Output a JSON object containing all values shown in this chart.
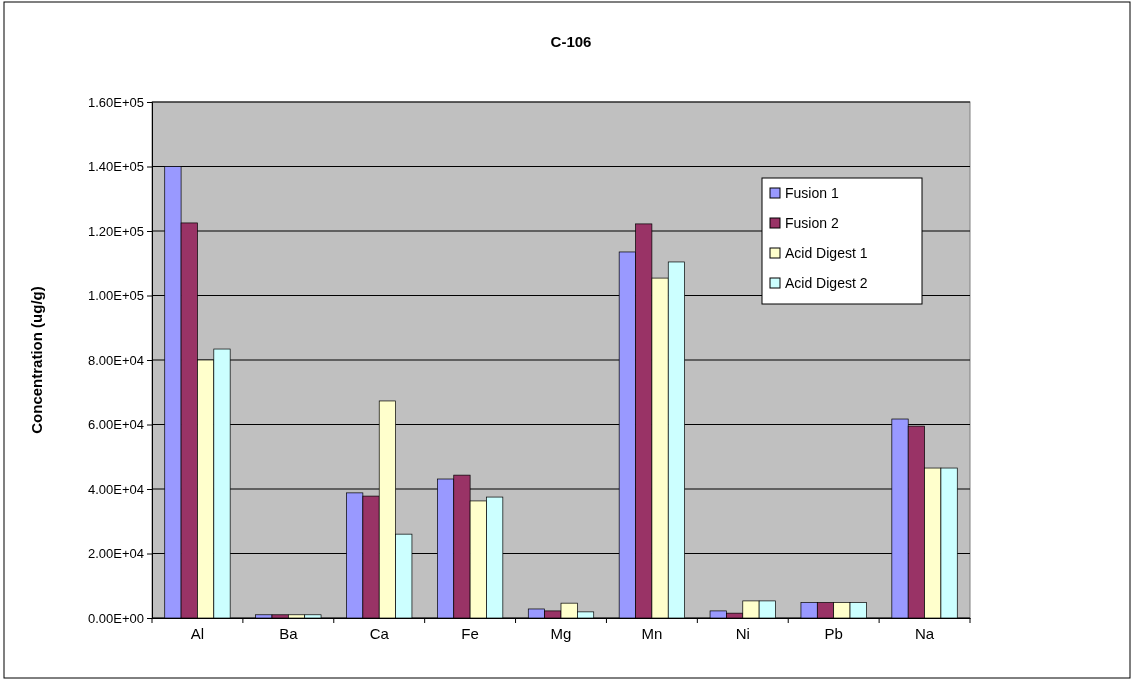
{
  "chart_data": {
    "type": "bar",
    "title": "C-106",
    "ylabel": "Concentration (ug/g)",
    "categories": [
      "Al",
      "Ba",
      "Ca",
      "Fe",
      "Mg",
      "Mn",
      "Ni",
      "Pb",
      "Na"
    ],
    "series": [
      {
        "name": "Fusion 1",
        "color": "#9999ff",
        "values": [
          140000,
          1000,
          38800,
          43100,
          2800,
          113500,
          2200,
          4800,
          61700
        ]
      },
      {
        "name": "Fusion 2",
        "color": "#993366",
        "values": [
          122500,
          1000,
          37800,
          44300,
          2200,
          122200,
          1500,
          4800,
          59500
        ]
      },
      {
        "name": "Acid Digest 1",
        "color": "#ffffcc",
        "values": [
          80000,
          1000,
          67300,
          36300,
          4600,
          105400,
          5300,
          4800,
          46500
        ]
      },
      {
        "name": "Acid Digest 2",
        "color": "#ccffff",
        "values": [
          83400,
          1000,
          26000,
          37500,
          1900,
          110400,
          5300,
          4800,
          46500
        ]
      }
    ],
    "ylim": [
      0,
      160000
    ],
    "yticks": [
      {
        "value": 0,
        "label": "0.00E+00"
      },
      {
        "value": 20000,
        "label": "2.00E+04"
      },
      {
        "value": 40000,
        "label": "4.00E+04"
      },
      {
        "value": 60000,
        "label": "6.00E+04"
      },
      {
        "value": 80000,
        "label": "8.00E+04"
      },
      {
        "value": 100000,
        "label": "1.00E+05"
      },
      {
        "value": 120000,
        "label": "1.20E+05"
      },
      {
        "value": 140000,
        "label": "1.40E+05"
      },
      {
        "value": 160000,
        "label": "1.60E+05"
      }
    ],
    "grid": "y",
    "legend": "top right"
  }
}
